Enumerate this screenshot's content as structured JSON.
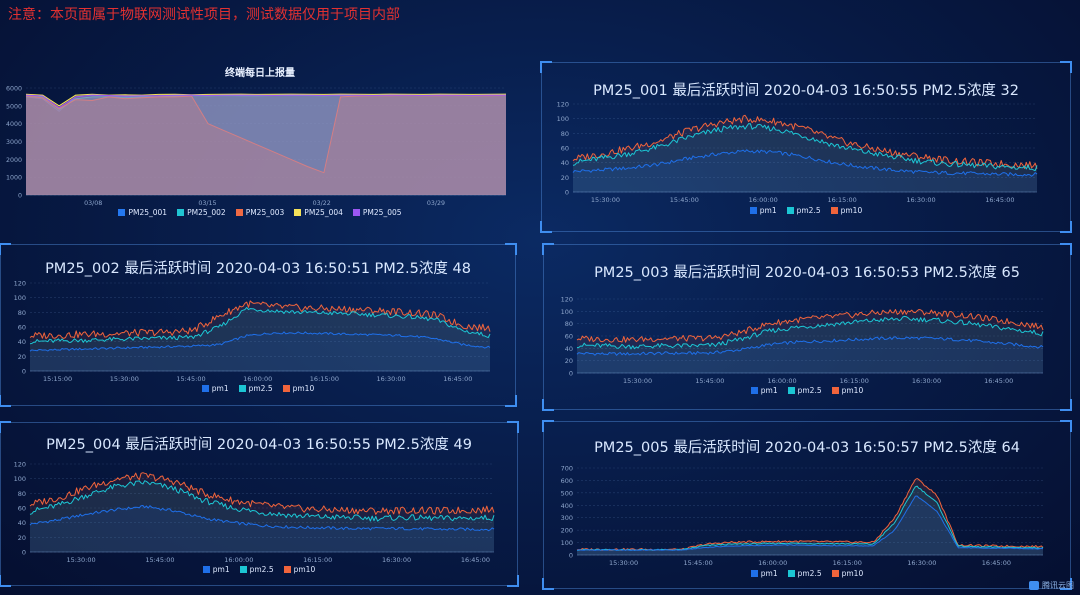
{
  "notice": "注意：本页面属于物联网测试性项目，测试数据仅用于项目内部",
  "brand": "腾讯云图",
  "colors": {
    "pm1": "#1f6fe8",
    "pm25": "#1cc6d4",
    "pm10": "#f0643c",
    "PM25_001": "#2478f0",
    "PM25_002": "#20c5d3",
    "PM25_003": "#f06a44",
    "PM25_004": "#f4e15a",
    "PM25_005": "#9b57f2"
  },
  "chart_data": [
    {
      "id": "overview",
      "type": "area",
      "title": "终端每日上报量",
      "ylim": [
        0,
        6000
      ],
      "yticks": [
        "0",
        "1000",
        "2000",
        "3000",
        "4000",
        "5000",
        "6000"
      ],
      "xticks": [
        "03/08",
        "03/15",
        "03/22",
        "03/29"
      ],
      "legend": [
        "PM25_001",
        "PM25_002",
        "PM25_003",
        "PM25_004",
        "PM25_005"
      ],
      "series": [
        {
          "name": "PM25_001",
          "values": [
            5500,
            5400,
            4700,
            5500,
            5600,
            5550,
            5500,
            5550,
            5560,
            5600,
            5580,
            5570,
            5590,
            5600,
            5580,
            5590,
            5600,
            5590,
            5580,
            5600,
            5590,
            5580,
            5600,
            5580,
            5590,
            5600,
            5580,
            5570,
            5590,
            5600
          ]
        },
        {
          "name": "PM25_002",
          "values": [
            5600,
            5500,
            4800,
            5400,
            5500,
            5500,
            5450,
            5500,
            5520,
            5550,
            5580,
            5560,
            5580,
            5570,
            5560,
            5580,
            5590,
            5580,
            5570,
            5590,
            5580,
            5590,
            5600,
            5590,
            5580,
            5600,
            5590,
            5580,
            5590,
            5580
          ]
        },
        {
          "name": "PM25_003",
          "values": [
            5550,
            5450,
            4850,
            5350,
            5300,
            5500,
            5400,
            5450,
            5500,
            5500,
            5550,
            4000,
            3600,
            3200,
            2800,
            2400,
            2000,
            1600,
            1250,
            5500,
            5550,
            5560,
            5570,
            5580,
            5560,
            5570,
            5580,
            5560,
            5570,
            5580
          ]
        },
        {
          "name": "PM25_004",
          "values": [
            5650,
            5600,
            5000,
            5600,
            5650,
            5600,
            5620,
            5600,
            5640,
            5650,
            5620,
            5640,
            5650,
            5660,
            5640,
            5650,
            5660,
            5650,
            5640,
            5660,
            5650,
            5640,
            5660,
            5650,
            5640,
            5660,
            5650,
            5640,
            5650,
            5660
          ]
        },
        {
          "name": "PM25_005",
          "values": [
            5600,
            5550,
            4900,
            5500,
            5600,
            5580,
            5550,
            5560,
            5570,
            5590,
            5600,
            5580,
            5590,
            5600,
            5590,
            5580,
            5600,
            5590,
            5580,
            5600,
            5590,
            5580,
            5600,
            5590,
            5580,
            5600,
            5590,
            5580,
            5600,
            5590
          ]
        }
      ]
    },
    {
      "id": "PM25_001",
      "type": "line",
      "device": "PM25_001",
      "title_label": "最后活跃时间",
      "time": "2020-04-03 16:50:55",
      "metric_label": "PM2.5浓度",
      "metric_value": "32",
      "ylim": [
        0,
        120
      ],
      "yticks": [
        "0",
        "20",
        "40",
        "60",
        "80",
        "100",
        "120"
      ],
      "xticks": [
        "15:30:00",
        "15:45:00",
        "16:00:00",
        "16:15:00",
        "16:30:00",
        "16:45:00"
      ],
      "legend": [
        "pm1",
        "pm2.5",
        "pm10"
      ],
      "series": [
        {
          "name": "pm1",
          "values": [
            28,
            30,
            33,
            38,
            46,
            52,
            56,
            54,
            48,
            40,
            34,
            30,
            27,
            26,
            25,
            24,
            24
          ]
        },
        {
          "name": "pm2.5",
          "values": [
            40,
            46,
            53,
            62,
            75,
            85,
            90,
            86,
            76,
            64,
            55,
            48,
            42,
            38,
            36,
            34,
            33
          ]
        },
        {
          "name": "pm10",
          "values": [
            45,
            52,
            60,
            70,
            84,
            94,
            100,
            96,
            86,
            72,
            62,
            54,
            48,
            43,
            40,
            38,
            36
          ]
        }
      ]
    },
    {
      "id": "PM25_002",
      "type": "line",
      "device": "PM25_002",
      "title_label": "最后活跃时间",
      "time": "2020-04-03 16:50:51",
      "metric_label": "PM2.5浓度",
      "metric_value": "48",
      "ylim": [
        0,
        120
      ],
      "yticks": [
        "0",
        "20",
        "40",
        "60",
        "80",
        "100",
        "120"
      ],
      "xticks": [
        "15:15:00",
        "15:30:00",
        "15:45:00",
        "16:00:00",
        "16:15:00",
        "16:30:00",
        "16:45:00"
      ],
      "legend": [
        "pm1",
        "pm2.5",
        "pm10"
      ],
      "series": [
        {
          "name": "pm1",
          "values": [
            28,
            29,
            30,
            31,
            32,
            33,
            34,
            36,
            48,
            52,
            52,
            51,
            50,
            49,
            48,
            44,
            36,
            32
          ]
        },
        {
          "name": "pm2.5",
          "values": [
            40,
            41,
            42,
            43,
            44,
            45,
            46,
            60,
            85,
            82,
            80,
            79,
            78,
            76,
            74,
            70,
            55,
            48
          ]
        },
        {
          "name": "pm10",
          "values": [
            48,
            49,
            50,
            51,
            52,
            53,
            55,
            75,
            92,
            88,
            86,
            85,
            84,
            82,
            80,
            76,
            62,
            58
          ]
        }
      ]
    },
    {
      "id": "PM25_003",
      "type": "line",
      "device": "PM25_003",
      "title_label": "最后活跃时间",
      "time": "2020-04-03 16:50:53",
      "metric_label": "PM2.5浓度",
      "metric_value": "65",
      "ylim": [
        0,
        120
      ],
      "yticks": [
        "0",
        "20",
        "40",
        "60",
        "80",
        "100",
        "120"
      ],
      "xticks": [
        "15:30:00",
        "15:45:00",
        "16:00:00",
        "16:15:00",
        "16:30:00",
        "16:45:00"
      ],
      "legend": [
        "pm1",
        "pm2.5",
        "pm10"
      ],
      "series": [
        {
          "name": "pm1",
          "values": [
            32,
            31,
            31,
            32,
            32,
            33,
            38,
            46,
            50,
            52,
            54,
            56,
            57,
            56,
            54,
            50,
            46,
            42
          ]
        },
        {
          "name": "pm2.5",
          "values": [
            45,
            44,
            43,
            44,
            44,
            45,
            55,
            68,
            74,
            78,
            82,
            86,
            88,
            86,
            82,
            76,
            70,
            64
          ]
        },
        {
          "name": "pm10",
          "values": [
            56,
            55,
            54,
            56,
            56,
            57,
            66,
            80,
            86,
            90,
            94,
            98,
            100,
            98,
            94,
            88,
            82,
            74
          ]
        }
      ]
    },
    {
      "id": "PM25_004",
      "type": "line",
      "device": "PM25_004",
      "title_label": "最后活跃时间",
      "time": "2020-04-03 16:50:55",
      "metric_label": "PM2.5浓度",
      "metric_value": "49",
      "ylim": [
        0,
        120
      ],
      "yticks": [
        "0",
        "20",
        "40",
        "60",
        "80",
        "100",
        "120"
      ],
      "xticks": [
        "15:30:00",
        "15:45:00",
        "16:00:00",
        "16:15:00",
        "16:30:00",
        "16:45:00"
      ],
      "legend": [
        "pm1",
        "pm2.5",
        "pm10"
      ],
      "series": [
        {
          "name": "pm1",
          "values": [
            38,
            44,
            52,
            58,
            62,
            56,
            46,
            40,
            36,
            34,
            33,
            32,
            32,
            32,
            31,
            31,
            31
          ]
        },
        {
          "name": "pm2.5",
          "values": [
            55,
            64,
            78,
            90,
            95,
            86,
            70,
            60,
            54,
            50,
            48,
            47,
            46,
            47,
            46,
            46,
            47
          ]
        },
        {
          "name": "pm10",
          "values": [
            65,
            74,
            88,
            100,
            104,
            96,
            80,
            70,
            64,
            60,
            58,
            57,
            56,
            57,
            56,
            57,
            58
          ]
        }
      ]
    },
    {
      "id": "PM25_005",
      "type": "line",
      "device": "PM25_005",
      "title_label": "最后活跃时间",
      "time": "2020-04-03 16:50:57",
      "metric_label": "PM2.5浓度",
      "metric_value": "64",
      "ylim": [
        0,
        700
      ],
      "yticks": [
        "0",
        "100",
        "200",
        "300",
        "400",
        "500",
        "600",
        "700"
      ],
      "xticks": [
        "15:30:00",
        "15:45:00",
        "16:00:00",
        "16:15:00",
        "16:30:00",
        "16:45:00"
      ],
      "legend": [
        "pm1",
        "pm2.5",
        "pm10"
      ],
      "series": [
        {
          "name": "pm1",
          "values": [
            40,
            40,
            40,
            40,
            40,
            40,
            60,
            70,
            75,
            78,
            80,
            78,
            76,
            75,
            74,
            200,
            480,
            350,
            60,
            55,
            55,
            52,
            50
          ]
        },
        {
          "name": "pm2.5",
          "values": [
            42,
            42,
            42,
            42,
            42,
            42,
            75,
            85,
            90,
            92,
            95,
            93,
            92,
            90,
            88,
            260,
            560,
            420,
            70,
            65,
            62,
            60,
            58
          ]
        },
        {
          "name": "pm10",
          "values": [
            45,
            45,
            45,
            45,
            45,
            45,
            85,
            100,
            105,
            108,
            110,
            108,
            106,
            104,
            102,
            300,
            620,
            480,
            80,
            75,
            72,
            70,
            68
          ]
        }
      ]
    }
  ]
}
